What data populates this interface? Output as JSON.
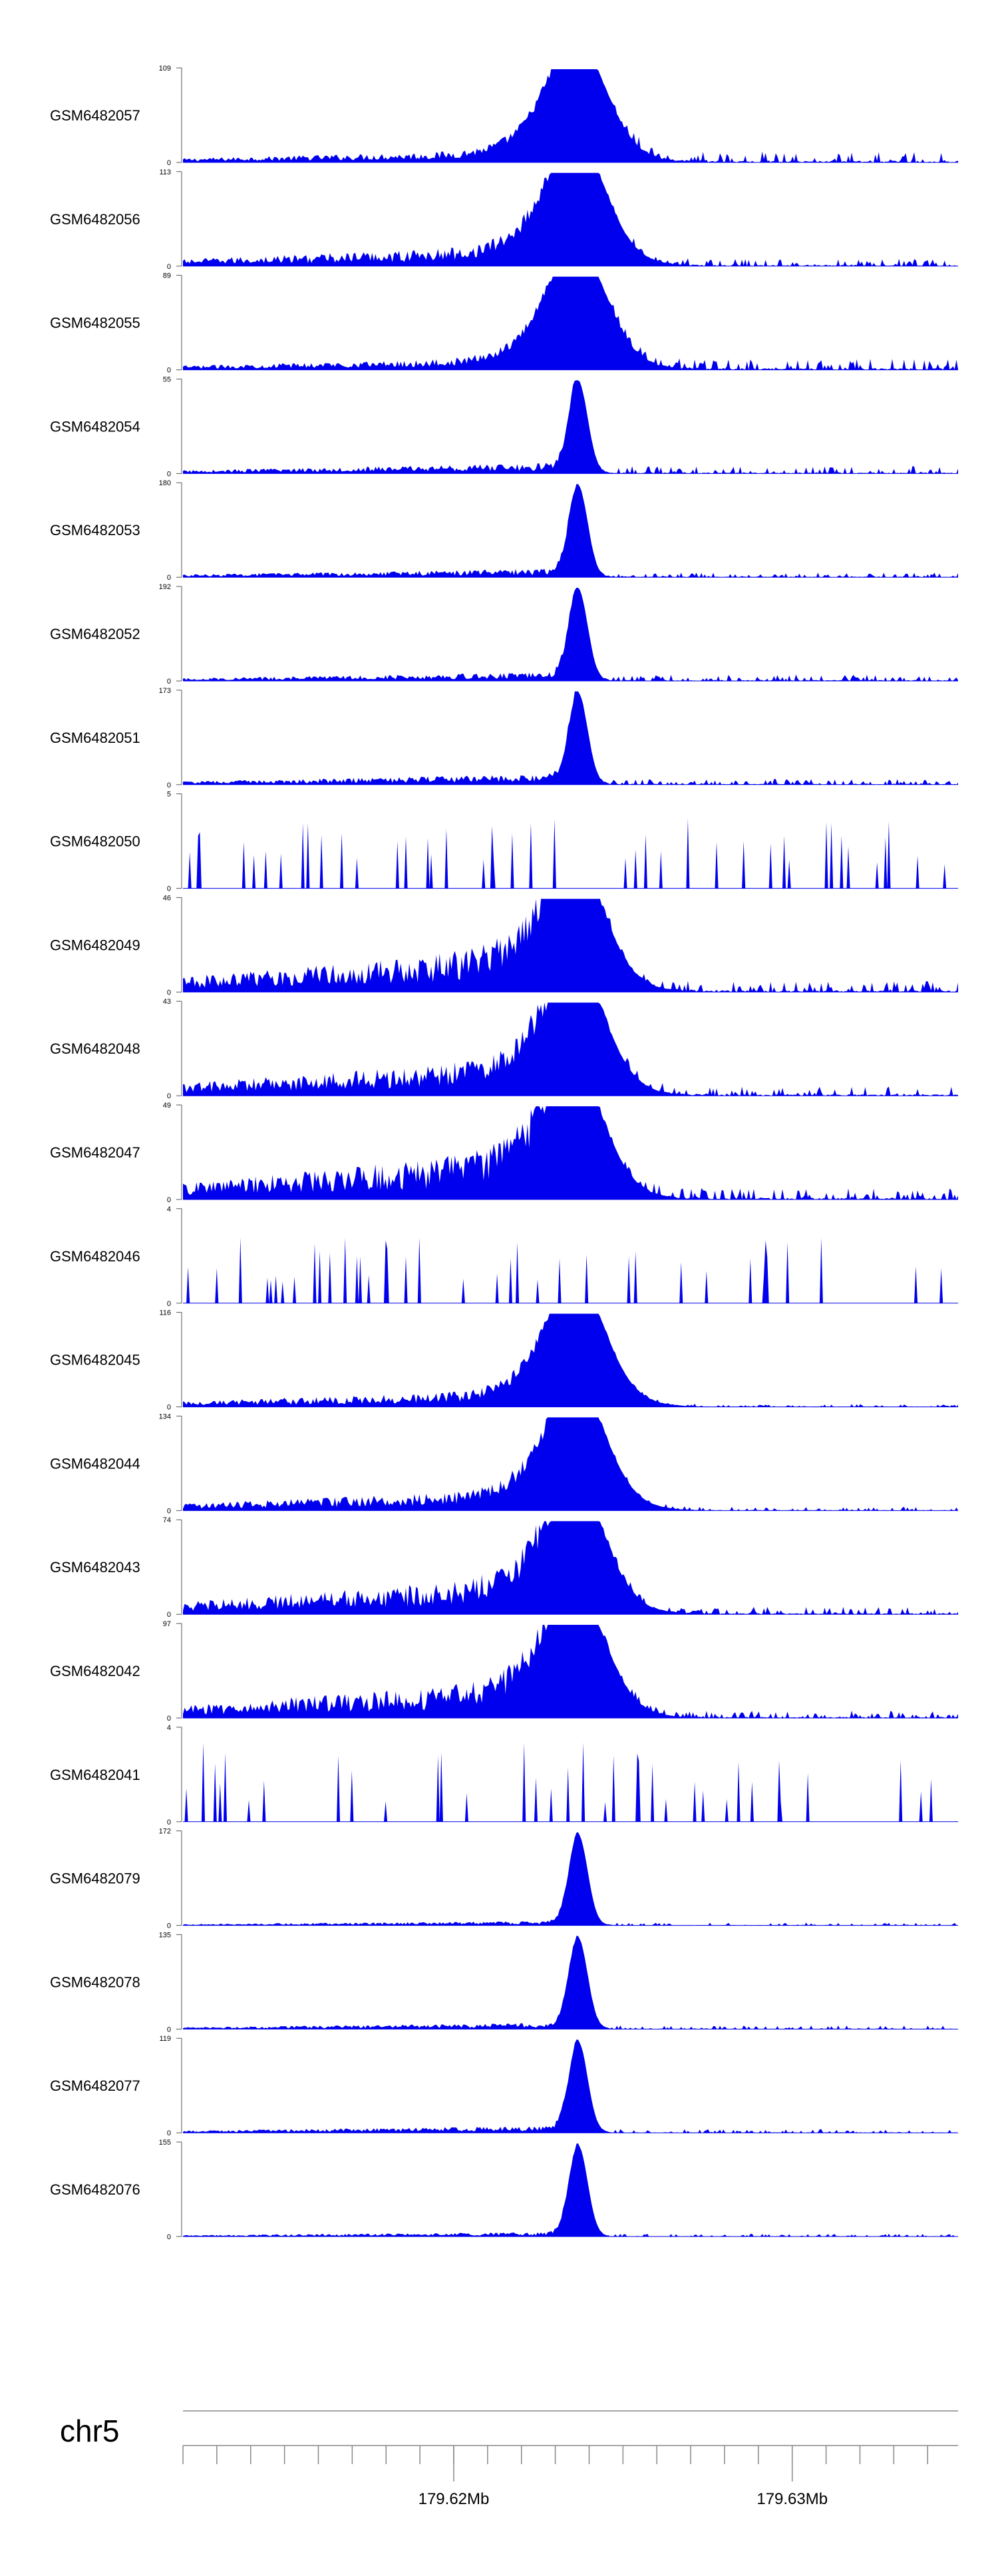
{
  "chart_data": {
    "type": "area",
    "title": "",
    "chromosome_label": "chr5",
    "axis_ticks": [
      {
        "position_mb": 179.62,
        "label": "179.62Mb"
      },
      {
        "position_mb": 179.63,
        "label": "179.63Mb"
      }
    ],
    "x_range_mb": [
      179.612,
      179.6349
    ],
    "series_color": "#0000ee",
    "tracks": [
      {
        "name": "GSM6482057",
        "ymax": 109,
        "ymin_label": "0",
        "profile": "broad",
        "peak_frac": 0.92,
        "noise": 0.15,
        "tail": 0.12
      },
      {
        "name": "GSM6482056",
        "ymax": 113,
        "ymin_label": "0",
        "profile": "broad",
        "peak_frac": 0.95,
        "noise": 0.25,
        "tail": 0.08
      },
      {
        "name": "GSM6482055",
        "ymax": 89,
        "ymin_label": "0",
        "profile": "broad",
        "peak_frac": 0.95,
        "noise": 0.15,
        "tail": 0.12
      },
      {
        "name": "GSM6482054",
        "ymax": 55,
        "ymin_label": "0",
        "profile": "sharp",
        "peak_frac": 0.98,
        "noise": 0.12,
        "tail": 0.08
      },
      {
        "name": "GSM6482053",
        "ymax": 180,
        "ymin_label": "0",
        "profile": "sharp",
        "peak_frac": 0.97,
        "noise": 0.1,
        "tail": 0.05
      },
      {
        "name": "GSM6482052",
        "ymax": 192,
        "ymin_label": "0",
        "profile": "sharp",
        "peak_frac": 0.98,
        "noise": 0.1,
        "tail": 0.07
      },
      {
        "name": "GSM6482051",
        "ymax": 173,
        "ymin_label": "0",
        "profile": "sharp",
        "peak_frac": 0.97,
        "noise": 0.12,
        "tail": 0.06
      },
      {
        "name": "GSM6482050",
        "ymax": 5,
        "ymin_label": "0",
        "profile": "noise",
        "peak_frac": 0.7,
        "noise": 0.5,
        "tail": 0.5
      },
      {
        "name": "GSM6482049",
        "ymax": 46,
        "ymin_label": "0",
        "profile": "broad",
        "peak_frac": 0.95,
        "noise": 0.55,
        "tail": 0.12
      },
      {
        "name": "GSM6482048",
        "ymax": 43,
        "ymin_label": "0",
        "profile": "broad",
        "peak_frac": 0.95,
        "noise": 0.45,
        "tail": 0.1
      },
      {
        "name": "GSM6482047",
        "ymax": 49,
        "ymin_label": "0",
        "profile": "broad",
        "peak_frac": 0.9,
        "noise": 0.6,
        "tail": 0.12
      },
      {
        "name": "GSM6482046",
        "ymax": 4,
        "ymin_label": "0",
        "profile": "noise",
        "peak_frac": 0.7,
        "noise": 0.5,
        "tail": 0.5
      },
      {
        "name": "GSM6482045",
        "ymax": 116,
        "ymin_label": "0",
        "profile": "broad",
        "peak_frac": 0.95,
        "noise": 0.2,
        "tail": 0.03
      },
      {
        "name": "GSM6482044",
        "ymax": 134,
        "ymin_label": "0",
        "profile": "broad",
        "peak_frac": 0.95,
        "noise": 0.25,
        "tail": 0.04
      },
      {
        "name": "GSM6482043",
        "ymax": 74,
        "ymin_label": "0",
        "profile": "broad",
        "peak_frac": 0.95,
        "noise": 0.45,
        "tail": 0.08
      },
      {
        "name": "GSM6482042",
        "ymax": 97,
        "ymin_label": "0",
        "profile": "broad",
        "peak_frac": 0.95,
        "noise": 0.45,
        "tail": 0.08
      },
      {
        "name": "GSM6482041",
        "ymax": 4,
        "ymin_label": "0",
        "profile": "noise",
        "peak_frac": 0.85,
        "noise": 0.55,
        "tail": 0.55
      },
      {
        "name": "GSM6482079",
        "ymax": 172,
        "ymin_label": "0",
        "profile": "sharp",
        "peak_frac": 0.97,
        "noise": 0.05,
        "tail": 0.03
      },
      {
        "name": "GSM6482078",
        "ymax": 135,
        "ymin_label": "0",
        "profile": "sharp",
        "peak_frac": 0.97,
        "noise": 0.07,
        "tail": 0.04
      },
      {
        "name": "GSM6482077",
        "ymax": 119,
        "ymin_label": "0",
        "profile": "sharp",
        "peak_frac": 0.97,
        "noise": 0.08,
        "tail": 0.04
      },
      {
        "name": "GSM6482076",
        "ymax": 155,
        "ymin_label": "0",
        "profile": "sharp",
        "peak_frac": 0.97,
        "noise": 0.05,
        "tail": 0.03
      }
    ]
  }
}
